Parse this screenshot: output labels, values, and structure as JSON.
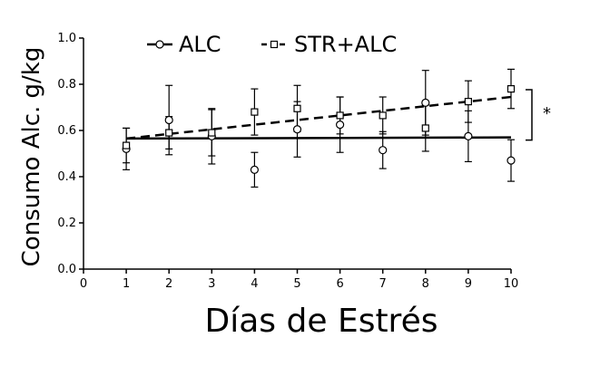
{
  "chart_data": {
    "type": "line",
    "title": "",
    "xlabel": "Días de Estrés",
    "ylabel": "Consumo Alc. g/kg",
    "xlim": [
      0,
      10
    ],
    "ylim": [
      0,
      1.0
    ],
    "xticks": [
      "0",
      "1",
      "2",
      "3",
      "4",
      "5",
      "6",
      "7",
      "8",
      "9",
      "10"
    ],
    "yticks": [
      "0.0",
      "0.2",
      "0.4",
      "0.6",
      "0.8",
      "1.0"
    ],
    "legend_position": "top",
    "significance_label": "*",
    "series": [
      {
        "name": "ALC",
        "marker": "circle",
        "x": [
          1,
          2,
          3,
          4,
          5,
          6,
          7,
          8,
          9,
          10
        ],
        "y": [
          0.52,
          0.645,
          0.575,
          0.43,
          0.605,
          0.625,
          0.515,
          0.72,
          0.575,
          0.47
        ],
        "error": [
          0.09,
          0.15,
          0.12,
          0.075,
          0.12,
          0.12,
          0.08,
          0.14,
          0.11,
          0.09
        ],
        "trend": {
          "y_start": 0.565,
          "y_end": 0.57,
          "style": "solid"
        }
      },
      {
        "name": "STR+ALC",
        "marker": "square",
        "x": [
          1,
          2,
          3,
          4,
          5,
          6,
          7,
          8,
          9,
          10
        ],
        "y": [
          0.535,
          0.59,
          0.59,
          0.68,
          0.695,
          0.665,
          0.665,
          0.61,
          0.725,
          0.78
        ],
        "error": [
          0.075,
          0.07,
          0.1,
          0.1,
          0.1,
          0.08,
          0.08,
          0.1,
          0.09,
          0.085
        ],
        "trend": {
          "y_start": 0.565,
          "y_end": 0.745,
          "style": "dashed"
        }
      }
    ]
  }
}
